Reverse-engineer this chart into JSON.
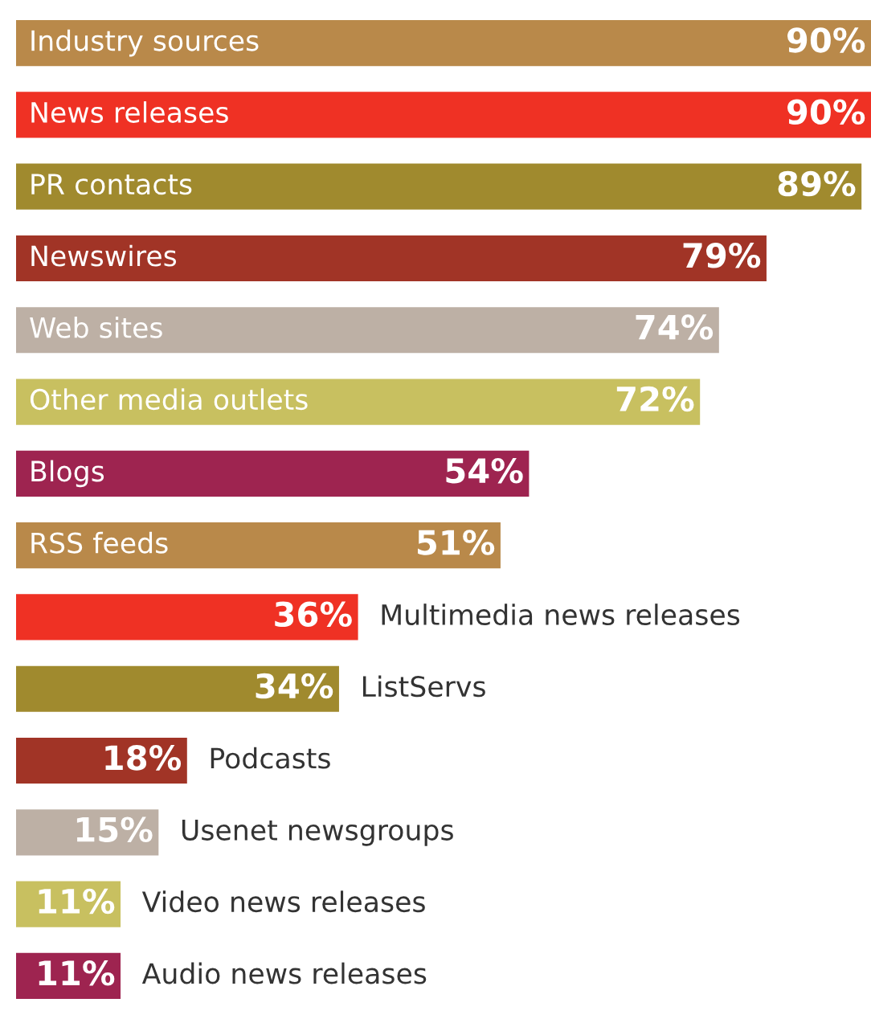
{
  "chart_data": {
    "type": "bar",
    "orientation": "horizontal",
    "categories": [
      "Industry sources",
      "News releases",
      "PR contacts",
      "Newswires",
      "Web sites",
      "Other media outlets",
      "Blogs",
      "RSS feeds",
      "Multimedia news releases",
      "ListServs",
      "Podcasts",
      "Usenet newsgroups",
      "Video news releases",
      "Audio news releases"
    ],
    "values": [
      90,
      90,
      89,
      79,
      74,
      72,
      54,
      51,
      36,
      34,
      18,
      15,
      11,
      11
    ],
    "value_labels": [
      "90%",
      "90%",
      "89%",
      "79%",
      "74%",
      "72%",
      "54%",
      "51%",
      "36%",
      "34%",
      "18%",
      "15%",
      "11%",
      "11%"
    ],
    "colors": [
      "#b9894a",
      "#ef3124",
      "#a08a2e",
      "#a13426",
      "#bdb0a5",
      "#c8c060",
      "#9e2450",
      "#b9894a",
      "#ef3124",
      "#a08a2e",
      "#a13426",
      "#bdb0a5",
      "#c8c060",
      "#9e2450"
    ],
    "legend": false
  }
}
